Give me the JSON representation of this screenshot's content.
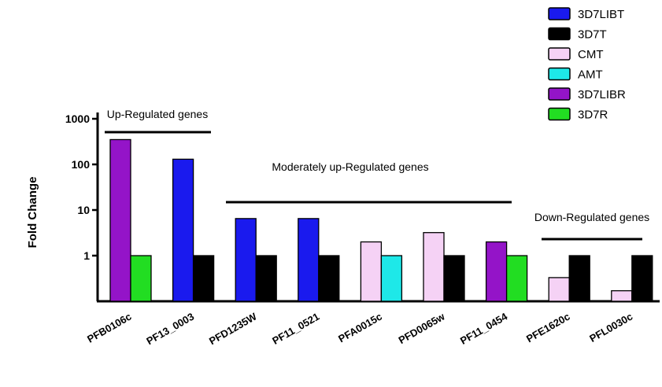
{
  "chart_data": {
    "type": "bar",
    "yscale": "log",
    "ylabel": "Fold Change",
    "ylim": [
      0.1,
      1000
    ],
    "yticks": [
      {
        "value": 1000,
        "label": "1000"
      },
      {
        "value": 100,
        "label": "100"
      },
      {
        "value": 10,
        "label": "10"
      },
      {
        "value": 1,
        "label": "1"
      }
    ],
    "legend_position": "top-right",
    "legend": [
      {
        "name": "3D7LIBT",
        "color": "#1a1aee"
      },
      {
        "name": "3D7T",
        "color": "#000000"
      },
      {
        "name": "CMT",
        "color": "#f5d2f5"
      },
      {
        "name": "AMT",
        "color": "#1ee8e8"
      },
      {
        "name": "3D7LIBR",
        "color": "#9414c8"
      },
      {
        "name": "3D7R",
        "color": "#22dd22"
      }
    ],
    "categories": [
      "PFB0106c",
      "PF13_0003",
      "PFD1235W",
      "PF11_0521",
      "PFA0015c",
      "PFD0065w",
      "PF11_0454",
      "PFE1620c",
      "PFL0030c"
    ],
    "groups": [
      {
        "category": "PFB0106c",
        "bars": [
          {
            "series": "3D7LIBR",
            "value": 350
          },
          {
            "series": "3D7R",
            "value": 1
          }
        ]
      },
      {
        "category": "PF13_0003",
        "bars": [
          {
            "series": "3D7LIBT",
            "value": 130
          },
          {
            "series": "3D7T",
            "value": 1
          }
        ]
      },
      {
        "category": "PFD1235W",
        "bars": [
          {
            "series": "3D7LIBT",
            "value": 6.5
          },
          {
            "series": "3D7T",
            "value": 1
          }
        ]
      },
      {
        "category": "PF11_0521",
        "bars": [
          {
            "series": "3D7LIBT",
            "value": 6.5
          },
          {
            "series": "3D7T",
            "value": 1
          }
        ]
      },
      {
        "category": "PFA0015c",
        "bars": [
          {
            "series": "CMT",
            "value": 2
          },
          {
            "series": "AMT",
            "value": 1
          }
        ]
      },
      {
        "category": "PFD0065w",
        "bars": [
          {
            "series": "CMT",
            "value": 3.2
          },
          {
            "series": "3D7T",
            "value": 1
          }
        ]
      },
      {
        "category": "PF11_0454",
        "bars": [
          {
            "series": "3D7LIBR",
            "value": 2
          },
          {
            "series": "3D7R",
            "value": 1
          }
        ]
      },
      {
        "category": "PFE1620c",
        "bars": [
          {
            "series": "CMT",
            "value": 0.33
          },
          {
            "series": "3D7T",
            "value": 1
          }
        ]
      },
      {
        "category": "PFL0030c",
        "bars": [
          {
            "series": "CMT",
            "value": 0.17
          },
          {
            "series": "3D7T",
            "value": 1
          }
        ]
      }
    ],
    "annotations": [
      {
        "text": "Up-Regulated genes",
        "from": "PFB0106c",
        "to": "PF13_0003"
      },
      {
        "text": "Moderately up-Regulated genes",
        "from": "PFD1235W",
        "to": "PF11_0454"
      },
      {
        "text": "Down-Regulated genes",
        "from": "PFE1620c",
        "to": "PFL0030c"
      }
    ]
  }
}
